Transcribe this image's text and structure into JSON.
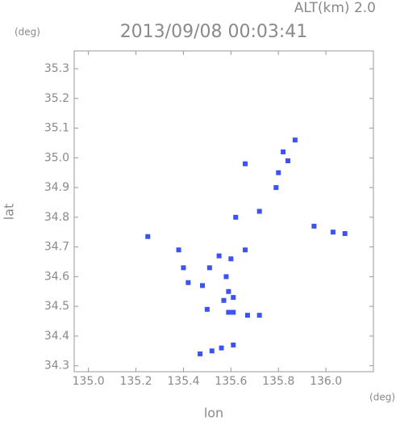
{
  "chart_data": {
    "type": "scatter",
    "title": "2013/09/08 00:03:41",
    "subtitle": "ALT(km)  2.0",
    "y_unit": "(deg)",
    "x_unit": "(deg)",
    "x_label": "lon",
    "y_label": "lat",
    "color": "#3d52f2",
    "xlim": [
      134.94,
      136.2
    ],
    "ylim": [
      34.28,
      35.36
    ],
    "xticks": [
      {
        "value": 135.0,
        "label": "135.0"
      },
      135.2,
      135.4,
      135.6,
      135.8,
      {
        "value": 136.0,
        "label": "136.0"
      }
    ],
    "yticks": [
      34.3,
      34.4,
      34.5,
      34.6,
      34.7,
      34.8,
      34.9,
      {
        "value": 35.0,
        "label": "35.0"
      },
      35.1,
      35.2,
      35.3
    ],
    "x": [
      135.87,
      135.82,
      135.84,
      135.66,
      135.79,
      135.8,
      135.62,
      135.72,
      135.25,
      135.95,
      136.03,
      136.08,
      135.38,
      135.55,
      135.6,
      135.66,
      135.4,
      135.51,
      135.58,
      135.42,
      135.48,
      135.59,
      135.61,
      135.57,
      135.59,
      135.5,
      135.61,
      135.67,
      135.72,
      135.47,
      135.52,
      135.56,
      135.61
    ],
    "y": [
      35.06,
      35.02,
      34.99,
      34.98,
      34.9,
      34.95,
      34.8,
      34.82,
      34.735,
      34.77,
      34.75,
      34.745,
      34.69,
      34.67,
      34.66,
      34.69,
      34.63,
      34.63,
      34.6,
      34.58,
      34.57,
      34.55,
      34.53,
      34.52,
      34.48,
      34.49,
      34.48,
      34.47,
      34.47,
      34.34,
      34.35,
      34.36,
      34.37
    ]
  }
}
